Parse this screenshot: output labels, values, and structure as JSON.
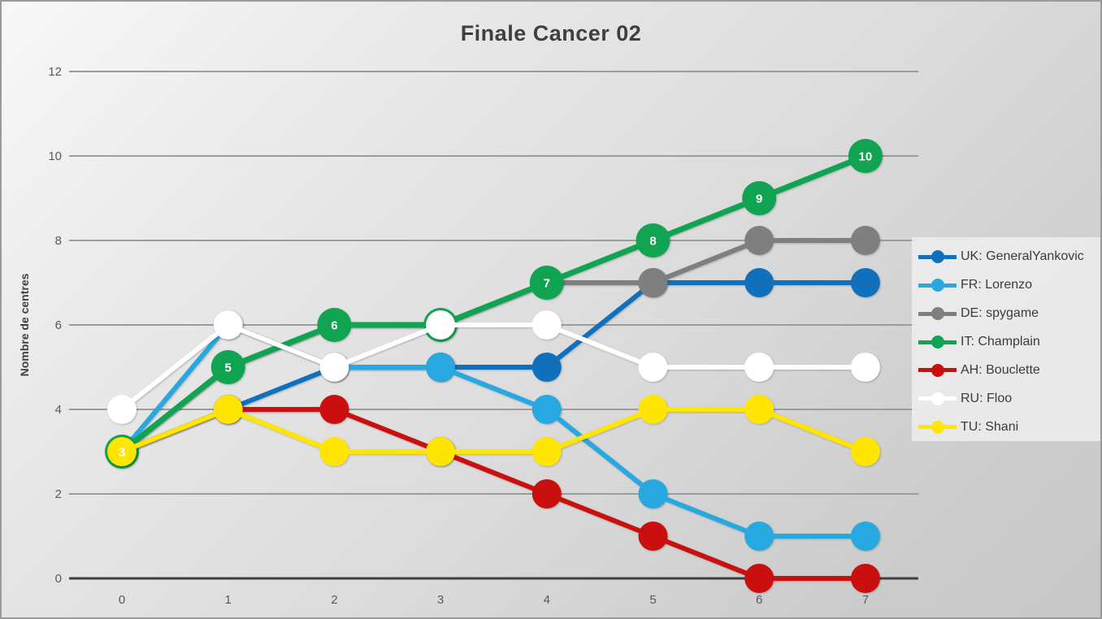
{
  "title": "Finale Cancer 02",
  "y_axis": {
    "label": "Nombre de centres",
    "ticks": [
      0,
      2,
      4,
      6,
      8,
      10,
      12
    ]
  },
  "x_axis": {
    "ticks": [
      "0",
      "1",
      "2",
      "3",
      "4",
      "5",
      "6",
      "7"
    ]
  },
  "chart_data": {
    "type": "line",
    "title": "Finale Cancer 02",
    "xlabel": "",
    "ylabel": "Nombre de centres",
    "x": [
      0,
      1,
      2,
      3,
      4,
      5,
      6,
      7
    ],
    "ylim": [
      0,
      12
    ],
    "grid": true,
    "legend_position": "right",
    "series": [
      {
        "name": "UK: GeneralYankovic",
        "color": "#1170bc",
        "values": [
          3,
          4,
          5,
          5,
          5,
          7,
          7,
          7
        ],
        "data_labels": false
      },
      {
        "name": "FR: Lorenzo",
        "color": "#27a8e0",
        "values": [
          3,
          6,
          5,
          5,
          4,
          2,
          1,
          1
        ],
        "data_labels": false
      },
      {
        "name": "DE: spygame",
        "color": "#7f7f7f",
        "values": [
          3,
          5,
          6,
          6,
          7,
          7,
          8,
          8
        ],
        "data_labels": false
      },
      {
        "name": "IT: Champlain",
        "color": "#10a351",
        "values": [
          3,
          5,
          6,
          6,
          7,
          8,
          9,
          10
        ],
        "data_labels": true
      },
      {
        "name": "AH: Bouclette",
        "color": "#c9100e",
        "values": [
          3,
          4,
          4,
          3,
          2,
          1,
          0,
          0
        ],
        "data_labels": false
      },
      {
        "name": "RU: Floo",
        "color": "#ffffff",
        "values": [
          4,
          6,
          5,
          6,
          6,
          5,
          5,
          5
        ],
        "data_labels": false
      },
      {
        "name": "TU: Shani",
        "color": "#ffe600",
        "values": [
          3,
          4,
          3,
          3,
          3,
          4,
          4,
          3
        ],
        "data_labels": false
      }
    ]
  }
}
